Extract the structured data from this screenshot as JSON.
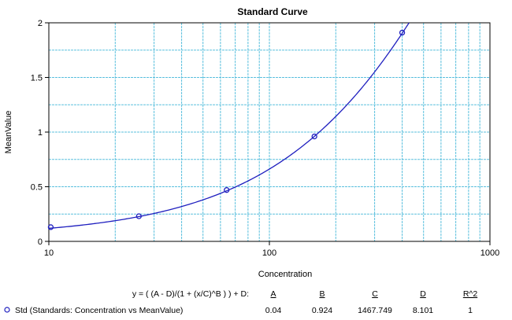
{
  "chart_data": {
    "type": "scatter",
    "title": "Standard Curve",
    "xlabel": "Concentration",
    "ylabel": "MeanValue",
    "x_scale": "log",
    "xlim": [
      10,
      1000
    ],
    "ylim": [
      0,
      2
    ],
    "x_ticks": [
      "10",
      "100",
      "1000"
    ],
    "y_ticks": [
      "0",
      "0.5",
      "1",
      "1.5",
      "2"
    ],
    "grid": true,
    "colors": {
      "grid": "#5bc0de",
      "series": "#1f1fbf",
      "axis": "#000000"
    },
    "series": [
      {
        "name": "Std (Standards: Concentration vs MeanValue)",
        "x": [
          10.2,
          25.6,
          64,
          160,
          400
        ],
        "y": [
          0.13,
          0.23,
          0.47,
          0.96,
          1.91
        ]
      }
    ],
    "fit": {
      "equation": "y = ( (A - D)/(1 + (x/C)^B ) ) + D:",
      "headers": [
        "A",
        "B",
        "C",
        "D",
        "R^2"
      ],
      "values": [
        "0.04",
        "0.924",
        "1467.749",
        "8.101",
        "1"
      ],
      "A": 0.04,
      "B": 0.924,
      "C": 1467.749,
      "D": 8.101
    }
  }
}
